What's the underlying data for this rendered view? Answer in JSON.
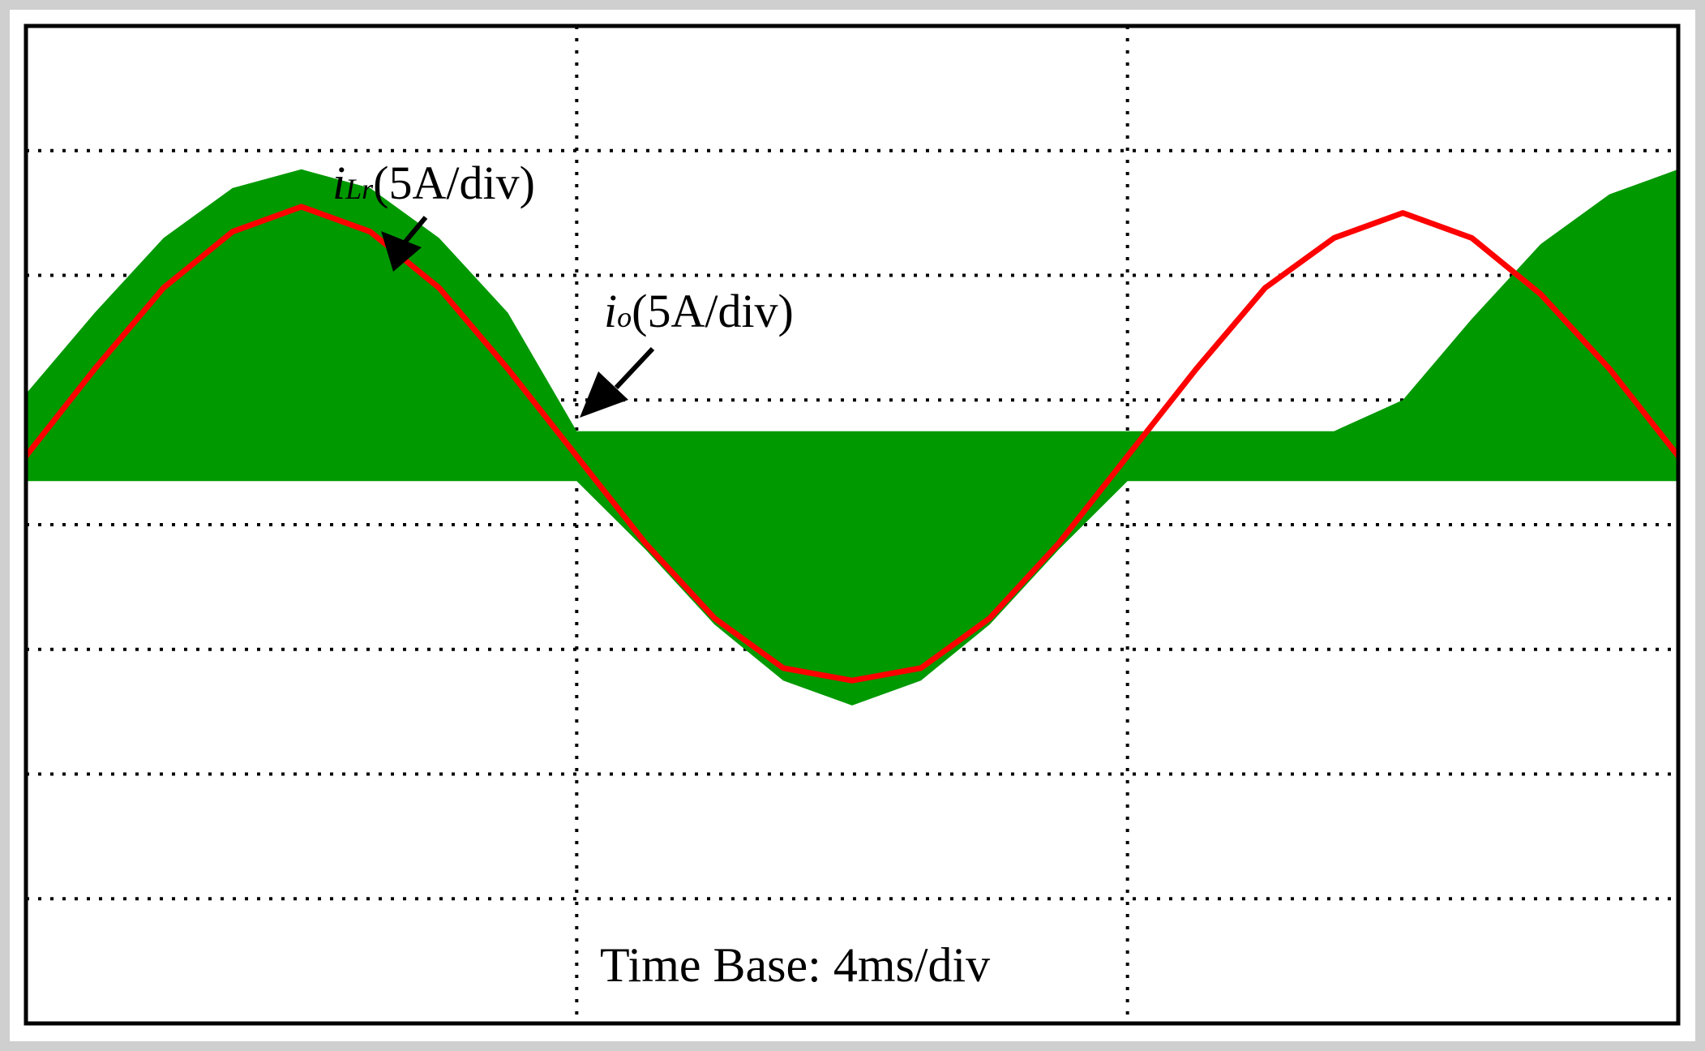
{
  "chart_data": {
    "type": "line",
    "title": "",
    "xlabel": "",
    "ylabel": "",
    "grid": true,
    "divisions": {
      "x": 3,
      "y": 8
    },
    "time_base": "Time Base: 4ms/div",
    "xlim": [
      0,
      12
    ],
    "ylim": [
      -4.75,
      3.25
    ],
    "series": [
      {
        "name": "iLr",
        "label_main": "i",
        "label_sub": "Lr",
        "label_unit": "(5A/div)",
        "color": "#009900",
        "kind": "band",
        "upper_envelope": {
          "x": [
            0,
            0.5,
            1.0,
            1.5,
            2.0,
            2.5,
            3.0,
            3.5,
            4.0,
            4.5,
            5.0,
            5.5,
            6.0,
            6.5,
            7.0,
            7.5,
            8.0,
            8.5,
            9.0,
            9.5,
            10.0,
            10.5,
            11.0,
            11.5,
            12.0
          ],
          "y": [
            0.3,
            0.95,
            1.55,
            1.95,
            2.1,
            1.95,
            1.55,
            0.95,
            0.0,
            0.0,
            0.0,
            0.0,
            0.0,
            0.0,
            0.0,
            0.0,
            0.0,
            0.0,
            0.0,
            0.0,
            0.25,
            0.9,
            1.5,
            1.9,
            2.1
          ]
        },
        "lower_envelope": {
          "x": [
            0,
            0.5,
            1.0,
            1.5,
            2.0,
            2.5,
            3.0,
            3.5,
            4.0,
            4.5,
            5.0,
            5.5,
            6.0,
            6.5,
            7.0,
            7.5,
            8.0,
            8.5,
            9.0,
            9.5,
            10.0,
            10.5,
            11.0,
            11.5,
            12.0
          ],
          "y": [
            -0.4,
            -0.4,
            -0.4,
            -0.4,
            -0.4,
            -0.4,
            -0.4,
            -0.4,
            -0.4,
            -0.95,
            -1.55,
            -2.0,
            -2.2,
            -2.0,
            -1.55,
            -0.95,
            -0.4,
            -0.4,
            -0.4,
            -0.4,
            -0.4,
            -0.4,
            -0.4,
            -0.4,
            -0.4
          ]
        }
      },
      {
        "name": "io",
        "label_main": "i",
        "label_sub": "o",
        "label_unit": "(5A/div)",
        "color": "#ff0000",
        "kind": "line",
        "x": [
          0,
          0.5,
          1.0,
          1.5,
          2.0,
          2.5,
          3.0,
          3.5,
          4.0,
          4.5,
          5.0,
          5.5,
          6.0,
          6.5,
          7.0,
          7.5,
          8.0,
          8.5,
          9.0,
          9.5,
          10.0,
          10.5,
          11.0,
          11.5,
          12.0
        ],
        "y": [
          -0.2,
          0.5,
          1.15,
          1.6,
          1.8,
          1.6,
          1.15,
          0.5,
          -0.2,
          -0.9,
          -1.5,
          -1.9,
          -2.0,
          -1.9,
          -1.5,
          -0.9,
          -0.2,
          0.5,
          1.15,
          1.55,
          1.75,
          1.55,
          1.1,
          0.5,
          -0.2
        ]
      }
    ]
  }
}
